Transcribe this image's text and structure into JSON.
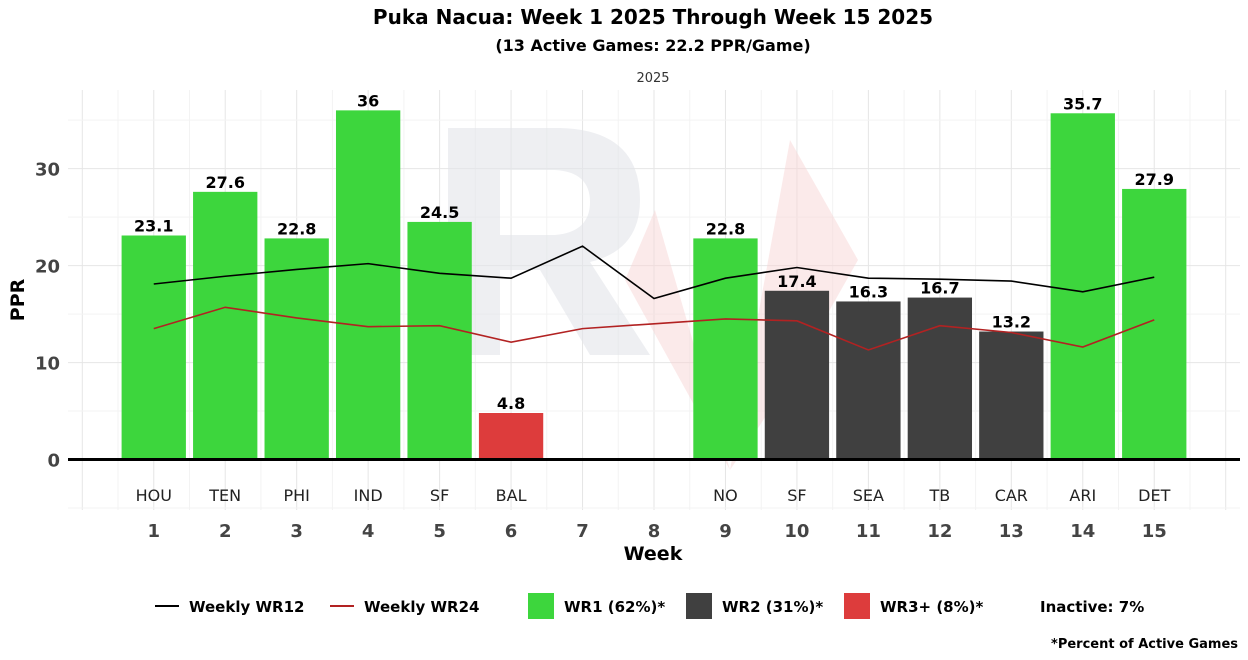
{
  "chart_data": {
    "type": "bar",
    "title": "Puka Nacua: Week 1 2025 Through Week 15 2025",
    "subtitle": "(13 Active Games: 22.2 PPR/Game)",
    "facet_label": "2025",
    "xlabel": "Week",
    "ylabel": "PPR",
    "xlim": [
      -0.2,
      16.2
    ],
    "ylim": [
      -5.2,
      38.1
    ],
    "y_ticks": [
      0,
      10,
      20,
      30
    ],
    "x_ticks": [
      1,
      2,
      3,
      4,
      5,
      6,
      7,
      8,
      9,
      10,
      11,
      12,
      13,
      14,
      15
    ],
    "grid": true,
    "bars": [
      {
        "week": 1,
        "opponent": "HOU",
        "value": 23.1,
        "tier": "WR1"
      },
      {
        "week": 2,
        "opponent": "TEN",
        "value": 27.6,
        "tier": "WR1"
      },
      {
        "week": 3,
        "opponent": "PHI",
        "value": 22.8,
        "tier": "WR1"
      },
      {
        "week": 4,
        "opponent": "IND",
        "value": 36,
        "tier": "WR1"
      },
      {
        "week": 5,
        "opponent": "SF",
        "value": 24.5,
        "tier": "WR1"
      },
      {
        "week": 6,
        "opponent": "BAL",
        "value": 4.8,
        "tier": "WR3+"
      },
      {
        "week": 9,
        "opponent": "NO",
        "value": 22.8,
        "tier": "WR1"
      },
      {
        "week": 10,
        "opponent": "SF",
        "value": 17.4,
        "tier": "WR2"
      },
      {
        "week": 11,
        "opponent": "SEA",
        "value": 16.3,
        "tier": "WR2"
      },
      {
        "week": 12,
        "opponent": "TB",
        "value": 16.7,
        "tier": "WR2"
      },
      {
        "week": 13,
        "opponent": "CAR",
        "value": 13.2,
        "tier": "WR2"
      },
      {
        "week": 14,
        "opponent": "ARI",
        "value": 35.7,
        "tier": "WR1"
      },
      {
        "week": 15,
        "opponent": "DET",
        "value": 27.9,
        "tier": "WR1"
      }
    ],
    "lines": [
      {
        "name": "Weekly WR12",
        "color": "#000000",
        "values": [
          18.1,
          18.9,
          19.6,
          20.2,
          19.2,
          18.7,
          22.0,
          16.6,
          18.7,
          19.8,
          18.7,
          18.6,
          18.4,
          17.3,
          18.8
        ]
      },
      {
        "name": "Weekly WR24",
        "color": "#b22222",
        "values": [
          13.5,
          15.7,
          14.6,
          13.7,
          13.8,
          12.1,
          13.5,
          14.0,
          14.5,
          14.3,
          11.3,
          13.8,
          13.1,
          11.6,
          14.4
        ]
      }
    ],
    "tier_colors": {
      "WR1": "#3dd63d",
      "WR2": "#404040",
      "WR3+": "#dd3c3c"
    },
    "legend": {
      "position": "bottom",
      "items": [
        {
          "label": "Weekly WR12",
          "kind": "line",
          "color": "#000000"
        },
        {
          "label": "Weekly WR24",
          "kind": "line",
          "color": "#b22222"
        },
        {
          "label": "WR1 (62%)*",
          "kind": "box",
          "color": "#3dd63d"
        },
        {
          "label": "WR2 (31%)*",
          "kind": "box",
          "color": "#404040"
        },
        {
          "label": "WR3+ (8%)*",
          "kind": "box",
          "color": "#dd3c3c"
        },
        {
          "label": "Inactive: 7%",
          "kind": "text"
        }
      ]
    },
    "footnote": "*Percent of Active Games"
  }
}
